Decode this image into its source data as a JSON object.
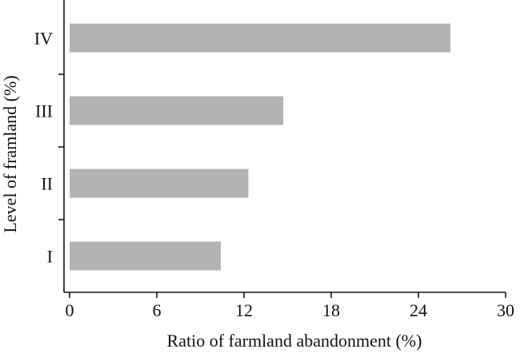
{
  "chart_data": {
    "type": "bar",
    "orientation": "horizontal",
    "categories": [
      "I",
      "II",
      "III",
      "IV"
    ],
    "values": [
      10.4,
      12.3,
      14.7,
      26.2
    ],
    "xlabel": "Ratio of farmland abandonment (%)",
    "ylabel": "Level of framland (%)",
    "xlim": [
      0,
      30
    ],
    "xticks": [
      "0",
      "6",
      "12",
      "18",
      "24",
      "30"
    ],
    "grid": false,
    "bar_color": "#b3b3b3",
    "axis_color": "#111111"
  }
}
